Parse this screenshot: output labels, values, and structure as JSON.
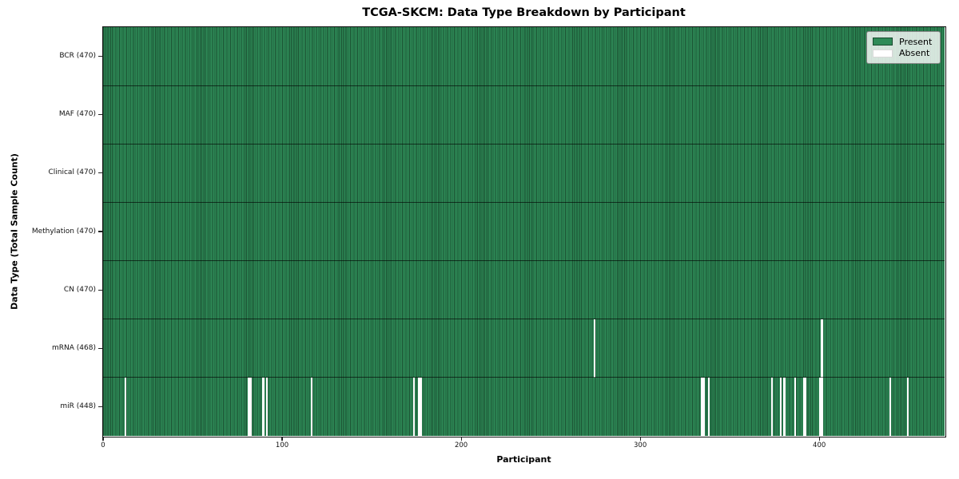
{
  "chart_data": {
    "type": "heatmap",
    "title": "TCGA-SKCM: Data Type Breakdown by Participant",
    "xlabel": "Participant",
    "ylabel": "Data Type (Total Sample Count)",
    "x_ticks": [
      0,
      100,
      200,
      300,
      400
    ],
    "xlim": [
      0,
      470
    ],
    "total_participants": 470,
    "grid": false,
    "legend_position": "upper right",
    "legend": [
      {
        "label": "Present",
        "color": "#2e8b57"
      },
      {
        "label": "Absent",
        "color": "#ffffff"
      }
    ],
    "colors": {
      "present": "#2e8b57",
      "absent": "#ffffff",
      "cell_edge": "rgba(0,0,0,0.42)",
      "row_boundary": "rgba(0,0,0,0.62)"
    },
    "rows": [
      {
        "name": "BCR",
        "count": 470,
        "label": "BCR (470)",
        "missing": []
      },
      {
        "name": "MAF",
        "count": 470,
        "label": "MAF (470)",
        "missing": []
      },
      {
        "name": "Clinical",
        "count": 470,
        "label": "Clinical (470)",
        "missing": []
      },
      {
        "name": "Methylation",
        "count": 470,
        "label": "Methylation (470)",
        "missing": []
      },
      {
        "name": "CN",
        "count": 470,
        "label": "CN (470)",
        "missing": []
      },
      {
        "name": "mRNA",
        "count": 468,
        "label": "mRNA (468)",
        "missing": [
          274,
          401
        ]
      },
      {
        "name": "miR",
        "count": 448,
        "label": "miR (448)",
        "missing": [
          12,
          81,
          82,
          89,
          91,
          116,
          173,
          176,
          177,
          334,
          335,
          338,
          373,
          378,
          380,
          386,
          391,
          392,
          400,
          401,
          439,
          449
        ]
      }
    ]
  }
}
